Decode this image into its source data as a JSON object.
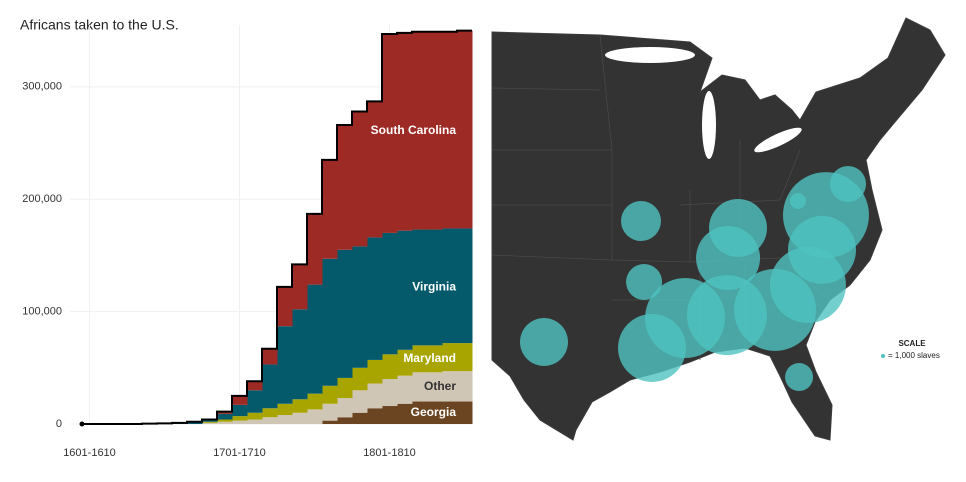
{
  "chart_data": [
    {
      "type": "stacked-step",
      "title": "Africans taken to the U.S.",
      "categories": [
        "1601-1610",
        null,
        null,
        null,
        null,
        null,
        null,
        null,
        null,
        null,
        "1701-1710",
        null,
        null,
        null,
        null,
        null,
        null,
        null,
        null,
        null,
        "1801-1810",
        null,
        null,
        null,
        null,
        null
      ],
      "series": [
        {
          "name": "Georgia",
          "color": "#6b4522",
          "label_color": "#ffffff",
          "values": [
            0,
            0,
            0,
            0,
            0,
            0,
            0,
            0,
            0,
            0,
            0,
            0,
            0,
            0,
            0,
            0,
            3000,
            6000,
            10000,
            14000,
            16000,
            18000,
            20000,
            20000,
            20000,
            20000
          ]
        },
        {
          "name": "Other",
          "color": "#cfc6b6",
          "label_color": "#333333",
          "values": [
            0,
            0,
            0,
            0,
            0,
            0,
            0,
            0,
            1000,
            2000,
            3000,
            4000,
            6000,
            8000,
            10000,
            13000,
            15000,
            17000,
            20000,
            22000,
            24000,
            25000,
            26000,
            26000,
            27000,
            27000
          ]
        },
        {
          "name": "Maryland",
          "color": "#a8a500",
          "label_color": "#ffffff",
          "values": [
            0,
            0,
            0,
            0,
            0,
            0,
            0,
            0,
            1000,
            2000,
            4000,
            6000,
            8000,
            10000,
            12000,
            14000,
            16000,
            18000,
            20000,
            21000,
            22000,
            23000,
            24000,
            24000,
            25000,
            25000
          ]
        },
        {
          "name": "Virginia",
          "color": "#045a6b",
          "label_color": "#ffffff",
          "values": [
            0,
            0,
            0,
            0,
            300,
            600,
            1000,
            1500,
            1500,
            5000,
            10000,
            20000,
            39000,
            69000,
            80000,
            97000,
            113000,
            114000,
            108000,
            109000,
            108000,
            106000,
            103000,
            103000,
            102000,
            102000
          ]
        },
        {
          "name": "South Carolina",
          "color": "#9e2a25",
          "label_color": "#ffffff",
          "values": [
            0,
            0,
            0,
            0,
            0,
            0,
            0,
            500,
            500,
            2000,
            8000,
            8000,
            14000,
            35000,
            40000,
            63000,
            88000,
            111000,
            120000,
            121000,
            177000,
            176000,
            176000,
            176000,
            175000,
            176000
          ]
        }
      ],
      "ylim": [
        0,
        355000
      ],
      "yticks": [
        0,
        {
          "value": 100000,
          "label": "100,000"
        },
        {
          "value": 200000,
          "label": "200,000"
        },
        {
          "value": 300000,
          "label": "300,000"
        }
      ],
      "grid": true
    },
    {
      "type": "bubble-map",
      "color": "#4fc3c0",
      "lon": [
        -78.07,
        -76.63,
        -78.33,
        -79.25,
        -81.4,
        -84.54,
        -87.28,
        -89.44,
        -83.82,
        -84.47,
        -90.16,
        -89.96,
        -96.5,
        -79.83,
        -79.9
      ],
      "lat": [
        37.41,
        38.98,
        35.65,
        33.88,
        32.62,
        32.36,
        32.21,
        30.7,
        36.76,
        35.24,
        37.11,
        34.03,
        31.0,
        29.23,
        38.12
      ],
      "values": [
        462000,
        81000,
        289000,
        361000,
        420000,
        400000,
        400000,
        289000,
        210000,
        256000,
        100000,
        81000,
        144000,
        49000,
        16000
      ],
      "scale_title": "SCALE",
      "scale_value": 1000,
      "scale_label": "= 1,000 slaves"
    }
  ]
}
